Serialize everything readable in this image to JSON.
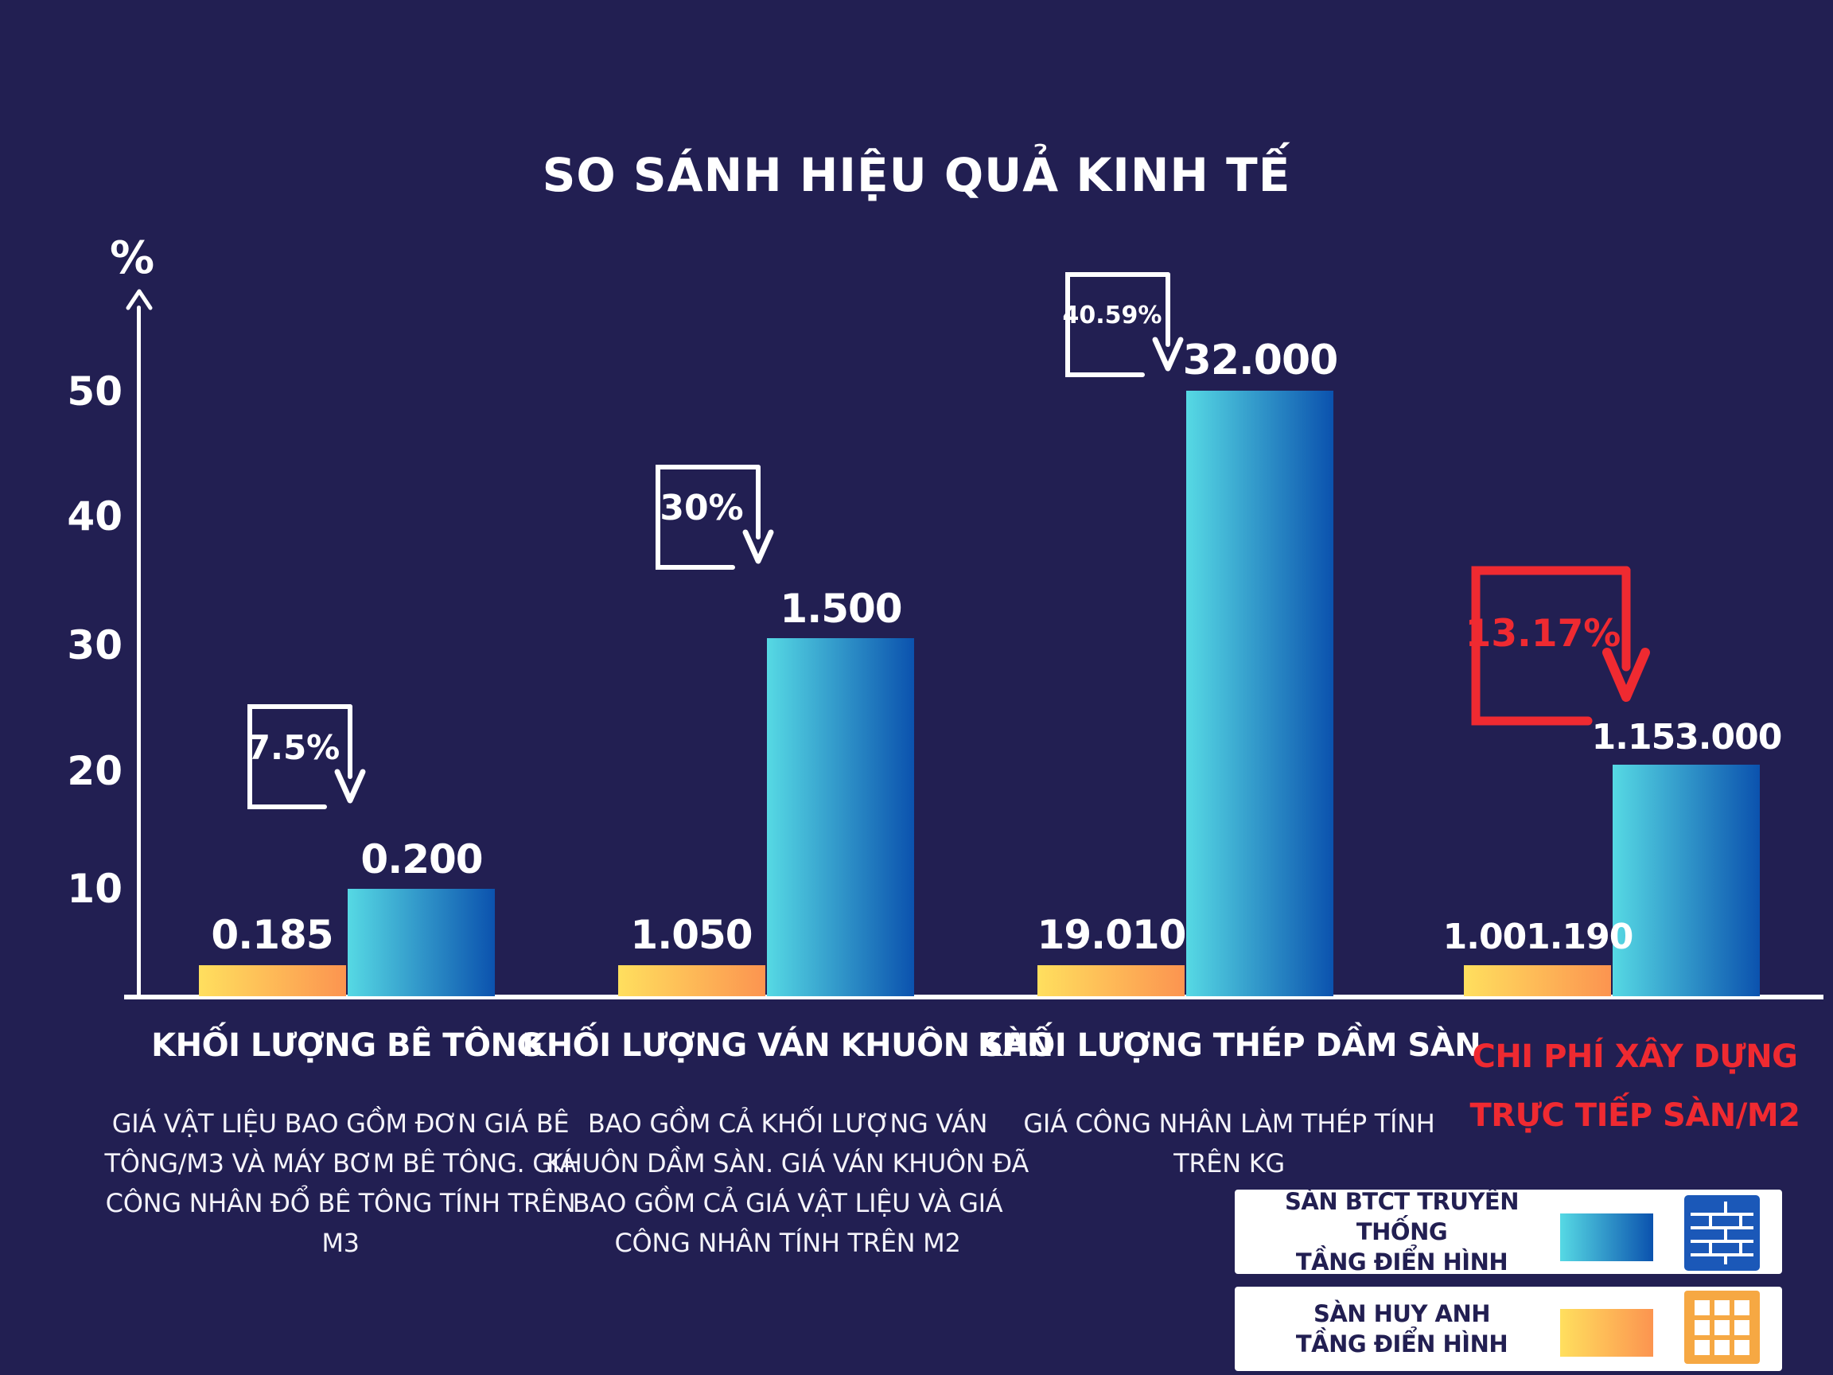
{
  "title": "SO SÁNH HIỆU QUẢ KINH TẾ",
  "colors": {
    "background": "#221f52",
    "bar_blue_gradient_start": "#56d9e4",
    "bar_blue_gradient_end": "#0b52ae",
    "bar_orange_gradient_start": "#ffdf5e",
    "bar_orange_gradient_end": "#fc9450",
    "accent_red": "#ef2a31",
    "axis_white": "#ffffff",
    "legend_text_navy": "#221f52",
    "brick_icon_blue": "#1b58b8",
    "grid_icon_orange": "#f6a843"
  },
  "y_axis": {
    "unit_label": "%",
    "ticks": [
      "50",
      "40",
      "30",
      "20",
      "10"
    ]
  },
  "chart_data": {
    "type": "bar",
    "title": "SO SÁNH HIỆU QUẢ KINH TẾ",
    "ylabel": "%",
    "y_ticks": [
      10,
      20,
      30,
      40,
      50
    ],
    "ylim": [
      0,
      55
    ],
    "grid": false,
    "legend_position": "bottom-right",
    "categories": [
      "KHỐI LƯỢNG BÊ TÔNG",
      "KHỐI LƯỢNG VÁN KHUÔN SÀN",
      "KHỐI LƯỢNG THÉP DẦM SÀN",
      "CHI PHÍ XÂY DỰNG TRỰC TIẾP SÀN/M2"
    ],
    "series": [
      {
        "name": "SÀN HUY ANH TẦNG ĐIỂN HÌNH",
        "color": "orange-gradient",
        "values_label": [
          "0.185",
          "1.050",
          "19.010",
          "1.001.190"
        ],
        "axis_height_pct": [
          2.5,
          2.5,
          2.5,
          2.5
        ]
      },
      {
        "name": "SÀN BTCT TRUYỀN THỐNG TẦNG ĐIỂN HÌNH",
        "color": "blue-gradient",
        "values_label": [
          "0.200",
          "1.500",
          "32.000",
          "1.153.000"
        ],
        "axis_height_pct": [
          8.6,
          28.6,
          48.3,
          18.5
        ]
      }
    ],
    "reduction_annotations": [
      {
        "label": "7.5%",
        "color": "white"
      },
      {
        "label": "30%",
        "color": "white"
      },
      {
        "label": "40.59%",
        "color": "white"
      },
      {
        "label": "13.17%",
        "color": "red"
      }
    ]
  },
  "groups": [
    {
      "label": "KHỐI LƯỢNG BÊ TÔNG",
      "description": "GIÁ VẬT LIỆU BAO GỒM ĐƠN GIÁ BÊ TÔNG/M3 VÀ MÁY BƠM BÊ TÔNG. GIÁ CÔNG NHÂN ĐỔ BÊ TÔNG TÍNH TRÊN M3",
      "huy_anh_value": "0.185",
      "btct_value": "0.200",
      "reduction": "7.5%"
    },
    {
      "label": "KHỐI LƯỢNG VÁN KHUÔN SÀN",
      "description": "BAO GỒM CẢ KHỐI LƯỢNG VÁN KHUÔN DẦM SÀN. GIÁ VÁN KHUÔN ĐÃ BAO GỒM CẢ GIÁ VẬT LIỆU VÀ GIÁ CÔNG NHÂN TÍNH TRÊN M2",
      "huy_anh_value": "1.050",
      "btct_value": "1.500",
      "reduction": "30%"
    },
    {
      "label": "KHỐI LƯỢNG THÉP DẦM SÀN",
      "description": "GIÁ CÔNG NHÂN LÀM THÉP TÍNH TRÊN KG",
      "huy_anh_value": "19.010",
      "btct_value": "32.000",
      "reduction": "40.59%"
    },
    {
      "label_line1": "CHI PHÍ XÂY DỰNG",
      "label_line2": "TRỰC TIẾP SÀN/M2",
      "huy_anh_value": "1.001.190",
      "btct_value": "1.153.000",
      "reduction": "13.17%"
    }
  ],
  "legend": [
    {
      "line1": "SÀN BTCT TRUYỀN THỐNG",
      "line2": "TẦNG ĐIỂN HÌNH",
      "swatch": "blue-gradient",
      "icon": "brick-wall-icon"
    },
    {
      "line1": "SÀN HUY ANH",
      "line2": "TẦNG ĐIỂN HÌNH",
      "swatch": "orange-gradient",
      "icon": "grid-icon"
    }
  ]
}
